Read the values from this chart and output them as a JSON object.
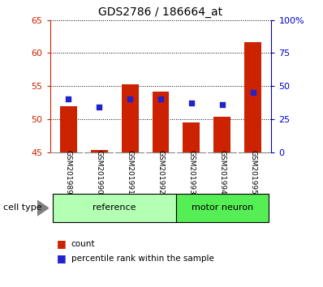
{
  "title": "GDS2786 / 186664_at",
  "samples": [
    "GSM201989",
    "GSM201990",
    "GSM201991",
    "GSM201992",
    "GSM201993",
    "GSM201994",
    "GSM201995"
  ],
  "counts": [
    52.0,
    45.3,
    55.3,
    54.2,
    49.5,
    50.3,
    61.7
  ],
  "percentile_ranks": [
    40.0,
    34.0,
    40.0,
    40.5,
    37.5,
    36.0,
    45.0
  ],
  "ylim_left": [
    45,
    65
  ],
  "ylim_right": [
    0,
    100
  ],
  "yticks_left": [
    45,
    50,
    55,
    60,
    65
  ],
  "yticks_right": [
    0,
    25,
    50,
    75,
    100
  ],
  "ytick_labels_right": [
    "0",
    "25",
    "50",
    "75",
    "100%"
  ],
  "bar_bottom": 45,
  "bar_color": "#cc2200",
  "dot_color": "#2222cc",
  "bg_color": "#ffffff",
  "plot_bg_color": "#ffffff",
  "xticklabel_bg": "#c8c8c8",
  "reference_label": "reference",
  "motor_neuron_label": "motor neuron",
  "cell_type_label": "cell type",
  "legend_count_label": "count",
  "legend_percentile_label": "percentile rank within the sample",
  "reference_color": "#b3ffb3",
  "motor_neuron_color": "#55ee55",
  "title_fontsize": 10,
  "tick_fontsize": 8,
  "ref_n": 4,
  "motor_n": 3
}
